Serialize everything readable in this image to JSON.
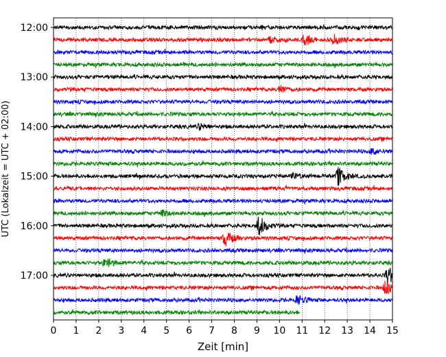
{
  "chart_data": {
    "type": "line",
    "title": "",
    "xlabel": "Zeit  [min]",
    "ylabel": "UTC (Lokalzeit = UTC + 02:00)",
    "xlim": [
      0,
      15
    ],
    "x_ticks": [
      0,
      1,
      2,
      3,
      4,
      5,
      6,
      7,
      8,
      9,
      10,
      11,
      12,
      13,
      14,
      15
    ],
    "x_tick_labels": [
      "0",
      "1",
      "2",
      "3",
      "4",
      "5",
      "6",
      "7",
      "8",
      "9",
      "10",
      "11",
      "12",
      "13",
      "14",
      "15"
    ],
    "y_tick_labels": [
      "12:00",
      "13:00",
      "14:00",
      "15:00",
      "16:00",
      "17:00"
    ],
    "grid": "vertical-dotted",
    "trace_interval_min": 15,
    "color_cycle": [
      "#000000",
      "#ff0000",
      "#0000ff",
      "#008000"
    ],
    "traces": [
      {
        "start": "12:00",
        "end_min": 15
      },
      {
        "start": "12:15",
        "end_min": 15
      },
      {
        "start": "12:30",
        "end_min": 15
      },
      {
        "start": "12:45",
        "end_min": 15
      },
      {
        "start": "13:00",
        "end_min": 15
      },
      {
        "start": "13:15",
        "end_min": 15
      },
      {
        "start": "13:30",
        "end_min": 15
      },
      {
        "start": "13:45",
        "end_min": 15
      },
      {
        "start": "14:00",
        "end_min": 15
      },
      {
        "start": "14:15",
        "end_min": 15
      },
      {
        "start": "14:30",
        "end_min": 15
      },
      {
        "start": "14:45",
        "end_min": 15
      },
      {
        "start": "15:00",
        "end_min": 15
      },
      {
        "start": "15:15",
        "end_min": 15
      },
      {
        "start": "15:30",
        "end_min": 15
      },
      {
        "start": "15:45",
        "end_min": 15
      },
      {
        "start": "16:00",
        "end_min": 15
      },
      {
        "start": "16:15",
        "end_min": 15
      },
      {
        "start": "16:30",
        "end_min": 15
      },
      {
        "start": "16:45",
        "end_min": 15
      },
      {
        "start": "17:00",
        "end_min": 15
      },
      {
        "start": "17:15",
        "end_min": 15
      },
      {
        "start": "17:30",
        "end_min": 15
      },
      {
        "start": "17:45",
        "end_min": 10.9
      }
    ],
    "events": [
      {
        "start": "12:15",
        "t": 11.1,
        "amp": 3.0
      },
      {
        "start": "12:15",
        "t": 12.4,
        "amp": 2.5
      },
      {
        "start": "12:15",
        "t": 9.6,
        "amp": 1.5
      },
      {
        "start": "13:15",
        "t": 10.0,
        "amp": 1.8
      },
      {
        "start": "14:00",
        "t": 6.5,
        "amp": 1.6
      },
      {
        "start": "14:30",
        "t": 14.1,
        "amp": 1.6
      },
      {
        "start": "15:00",
        "t": 12.6,
        "amp": 4.5
      },
      {
        "start": "15:00",
        "t": 10.6,
        "amp": 1.4
      },
      {
        "start": "15:45",
        "t": 4.8,
        "amp": 1.4
      },
      {
        "start": "16:00",
        "t": 9.1,
        "amp": 5.0
      },
      {
        "start": "16:15",
        "t": 7.6,
        "amp": 4.0
      },
      {
        "start": "16:45",
        "t": 2.3,
        "amp": 2.5
      },
      {
        "start": "17:00",
        "t": 14.8,
        "amp": 4.5
      },
      {
        "start": "17:15",
        "t": 14.7,
        "amp": 3.8
      },
      {
        "start": "17:30",
        "t": 10.8,
        "amp": 2.5
      }
    ]
  }
}
